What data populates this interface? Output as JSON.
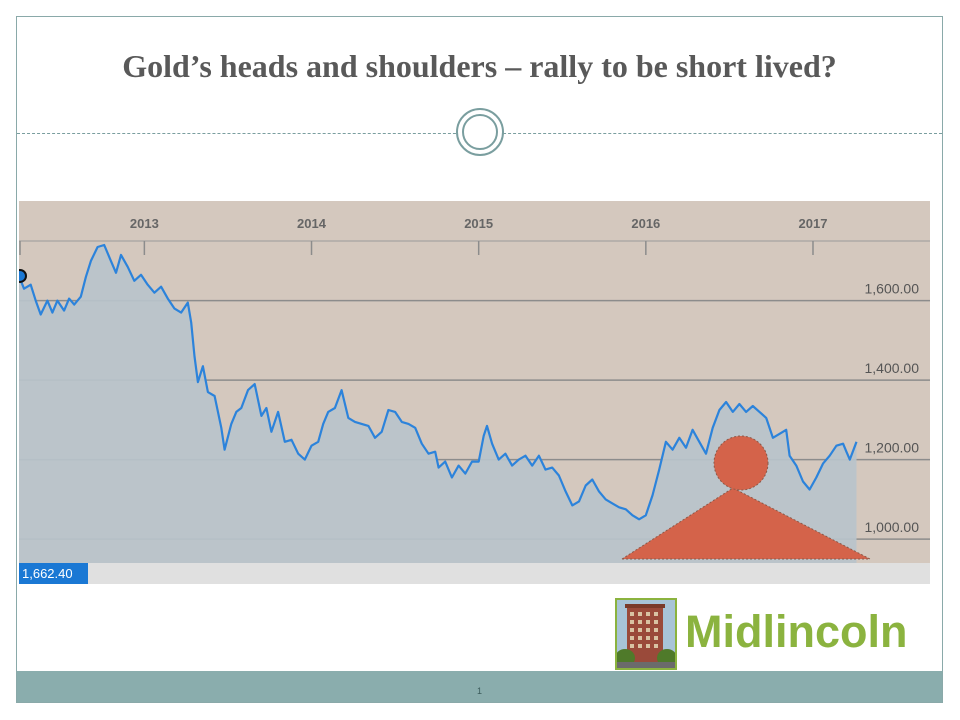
{
  "slide": {
    "title": "Gold’s heads and shoulders – rally to be short lived?",
    "page_number": "1",
    "logo_text": "Midlincoln"
  },
  "colors": {
    "plot_bg": "#d4c8be",
    "area_fill": "#b9c3cb",
    "line": "#2c83db",
    "badge": "#1a78d4",
    "annotation": "#d4634a",
    "logo_green": "#8bb33f",
    "footer": "#8aadad"
  },
  "chart_data": {
    "type": "area",
    "title": "",
    "xlabel": "",
    "ylabel": "",
    "x_tick_labels": [
      "2013",
      "2014",
      "2015",
      "2016",
      "2017"
    ],
    "y_tick_labels": [
      "1,600.00",
      "1,400.00",
      "1,200.00",
      "1,000.00"
    ],
    "y_ticks": [
      1600,
      1400,
      1200,
      1000
    ],
    "xlim": [
      2012.25,
      2017.7
    ],
    "ylim": [
      940,
      1750
    ],
    "grid": true,
    "current_value_label": "1,662.40",
    "series": [
      {
        "values": [
          [
            2012.25,
            1662
          ],
          [
            2012.28,
            1630
          ],
          [
            2012.32,
            1640
          ],
          [
            2012.35,
            1600
          ],
          [
            2012.38,
            1565
          ],
          [
            2012.42,
            1600
          ],
          [
            2012.45,
            1570
          ],
          [
            2012.48,
            1600
          ],
          [
            2012.52,
            1575
          ],
          [
            2012.55,
            1605
          ],
          [
            2012.58,
            1590
          ],
          [
            2012.62,
            1610
          ],
          [
            2012.65,
            1660
          ],
          [
            2012.68,
            1700
          ],
          [
            2012.72,
            1735
          ],
          [
            2012.76,
            1740
          ],
          [
            2012.8,
            1700
          ],
          [
            2012.83,
            1670
          ],
          [
            2012.86,
            1715
          ],
          [
            2012.9,
            1685
          ],
          [
            2012.94,
            1650
          ],
          [
            2012.98,
            1665
          ],
          [
            2013.02,
            1640
          ],
          [
            2013.06,
            1620
          ],
          [
            2013.1,
            1635
          ],
          [
            2013.14,
            1605
          ],
          [
            2013.18,
            1580
          ],
          [
            2013.22,
            1570
          ],
          [
            2013.26,
            1595
          ],
          [
            2013.28,
            1545
          ],
          [
            2013.3,
            1460
          ],
          [
            2013.32,
            1395
          ],
          [
            2013.35,
            1435
          ],
          [
            2013.38,
            1370
          ],
          [
            2013.42,
            1360
          ],
          [
            2013.46,
            1280
          ],
          [
            2013.48,
            1225
          ],
          [
            2013.52,
            1290
          ],
          [
            2013.55,
            1320
          ],
          [
            2013.58,
            1330
          ],
          [
            2013.62,
            1375
          ],
          [
            2013.66,
            1390
          ],
          [
            2013.7,
            1310
          ],
          [
            2013.73,
            1330
          ],
          [
            2013.76,
            1270
          ],
          [
            2013.8,
            1320
          ],
          [
            2013.84,
            1245
          ],
          [
            2013.88,
            1250
          ],
          [
            2013.92,
            1215
          ],
          [
            2013.96,
            1200
          ],
          [
            2014.0,
            1235
          ],
          [
            2014.04,
            1245
          ],
          [
            2014.07,
            1290
          ],
          [
            2014.1,
            1320
          ],
          [
            2014.14,
            1330
          ],
          [
            2014.18,
            1375
          ],
          [
            2014.22,
            1305
          ],
          [
            2014.26,
            1295
          ],
          [
            2014.3,
            1290
          ],
          [
            2014.34,
            1285
          ],
          [
            2014.38,
            1255
          ],
          [
            2014.42,
            1270
          ],
          [
            2014.46,
            1325
          ],
          [
            2014.5,
            1320
          ],
          [
            2014.54,
            1295
          ],
          [
            2014.58,
            1290
          ],
          [
            2014.62,
            1280
          ],
          [
            2014.66,
            1240
          ],
          [
            2014.7,
            1215
          ],
          [
            2014.74,
            1220
          ],
          [
            2014.76,
            1180
          ],
          [
            2014.8,
            1195
          ],
          [
            2014.84,
            1155
          ],
          [
            2014.88,
            1185
          ],
          [
            2014.92,
            1165
          ],
          [
            2014.96,
            1195
          ],
          [
            2015.0,
            1195
          ],
          [
            2015.03,
            1260
          ],
          [
            2015.05,
            1285
          ],
          [
            2015.08,
            1240
          ],
          [
            2015.12,
            1200
          ],
          [
            2015.16,
            1215
          ],
          [
            2015.2,
            1185
          ],
          [
            2015.24,
            1200
          ],
          [
            2015.28,
            1210
          ],
          [
            2015.32,
            1185
          ],
          [
            2015.36,
            1210
          ],
          [
            2015.4,
            1175
          ],
          [
            2015.44,
            1180
          ],
          [
            2015.48,
            1160
          ],
          [
            2015.52,
            1120
          ],
          [
            2015.56,
            1085
          ],
          [
            2015.6,
            1095
          ],
          [
            2015.64,
            1135
          ],
          [
            2015.68,
            1150
          ],
          [
            2015.72,
            1120
          ],
          [
            2015.76,
            1100
          ],
          [
            2015.8,
            1090
          ],
          [
            2015.84,
            1080
          ],
          [
            2015.88,
            1075
          ],
          [
            2015.92,
            1060
          ],
          [
            2015.96,
            1050
          ],
          [
            2016.0,
            1060
          ],
          [
            2016.04,
            1110
          ],
          [
            2016.08,
            1175
          ],
          [
            2016.12,
            1245
          ],
          [
            2016.16,
            1225
          ],
          [
            2016.2,
            1255
          ],
          [
            2016.24,
            1230
          ],
          [
            2016.28,
            1275
          ],
          [
            2016.32,
            1245
          ],
          [
            2016.36,
            1215
          ],
          [
            2016.4,
            1280
          ],
          [
            2016.44,
            1325
          ],
          [
            2016.48,
            1345
          ],
          [
            2016.52,
            1320
          ],
          [
            2016.56,
            1340
          ],
          [
            2016.6,
            1320
          ],
          [
            2016.64,
            1335
          ],
          [
            2016.68,
            1320
          ],
          [
            2016.72,
            1305
          ],
          [
            2016.76,
            1255
          ],
          [
            2016.8,
            1265
          ],
          [
            2016.84,
            1275
          ],
          [
            2016.86,
            1210
          ],
          [
            2016.9,
            1185
          ],
          [
            2016.94,
            1145
          ],
          [
            2016.98,
            1125
          ],
          [
            2017.02,
            1155
          ],
          [
            2017.06,
            1190
          ],
          [
            2017.1,
            1210
          ],
          [
            2017.14,
            1235
          ],
          [
            2017.18,
            1240
          ],
          [
            2017.2,
            1220
          ],
          [
            2017.22,
            1200
          ],
          [
            2017.26,
            1245
          ]
        ]
      }
    ]
  }
}
